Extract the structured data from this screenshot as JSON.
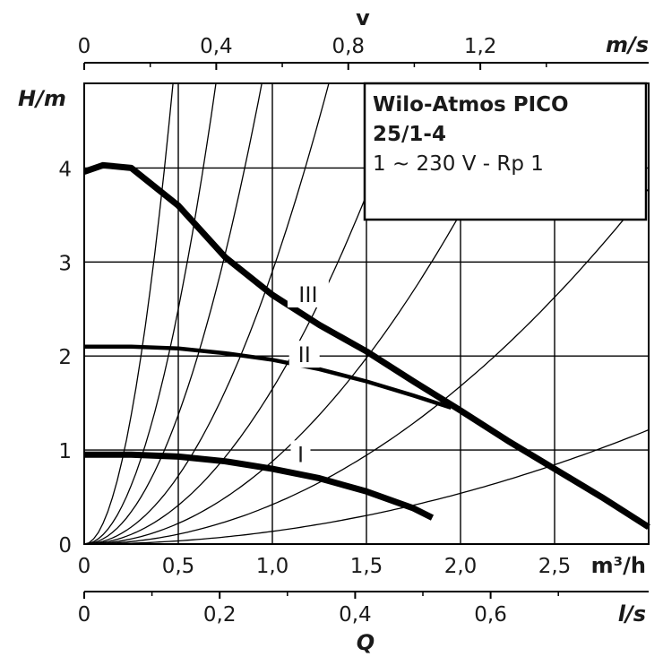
{
  "chart_data": {
    "type": "line",
    "title": "Wilo-Atmos PICO",
    "model": "25/1-4",
    "spec": "1 ~ 230 V - Rp 1",
    "ylabel": "H/m",
    "xlabel": "Q",
    "x_unit_main": "m³/h",
    "x_unit_bottom": "l/s",
    "top_axis_label": "v",
    "top_axis_unit": "m/s",
    "xlim": [
      0,
      3.0
    ],
    "ylim": [
      0,
      4.9
    ],
    "x_ticks": [
      "0",
      "0,5",
      "1,0",
      "1,5",
      "2,0",
      "2,5"
    ],
    "y_ticks": [
      "0",
      "1",
      "2",
      "3",
      "4"
    ],
    "top_ticks": [
      "0",
      "0,4",
      "0,8",
      "1,2"
    ],
    "bottom_ticks": [
      "0",
      "0,2",
      "0,4",
      "0,6"
    ],
    "grid": true,
    "series": [
      {
        "name": "III",
        "x": [
          0,
          0.1,
          0.25,
          0.5,
          0.75,
          1.0,
          1.25,
          1.5,
          1.75,
          2.0,
          2.25,
          2.5,
          2.75,
          3.0
        ],
        "y": [
          3.96,
          4.03,
          4.0,
          3.6,
          3.05,
          2.65,
          2.33,
          2.05,
          1.73,
          1.42,
          1.1,
          0.8,
          0.5,
          0.18
        ]
      },
      {
        "name": "II",
        "x": [
          0,
          0.25,
          0.5,
          0.75,
          1.0,
          1.25,
          1.5,
          1.75,
          1.95
        ],
        "y": [
          2.1,
          2.1,
          2.08,
          2.03,
          1.96,
          1.86,
          1.73,
          1.58,
          1.45
        ]
      },
      {
        "name": "I",
        "x": [
          0,
          0.25,
          0.5,
          0.75,
          1.0,
          1.25,
          1.5,
          1.75,
          1.85
        ],
        "y": [
          0.95,
          0.95,
          0.93,
          0.88,
          0.8,
          0.7,
          0.56,
          0.38,
          0.28
        ]
      }
    ],
    "system_curve_coefficients": [
      22,
      10,
      5.5,
      2.9,
      1.65,
      0.88,
      0.42,
      0.135
    ],
    "colors": {
      "curve": "#000000",
      "grid": "#000000",
      "background": "#ffffff"
    }
  }
}
